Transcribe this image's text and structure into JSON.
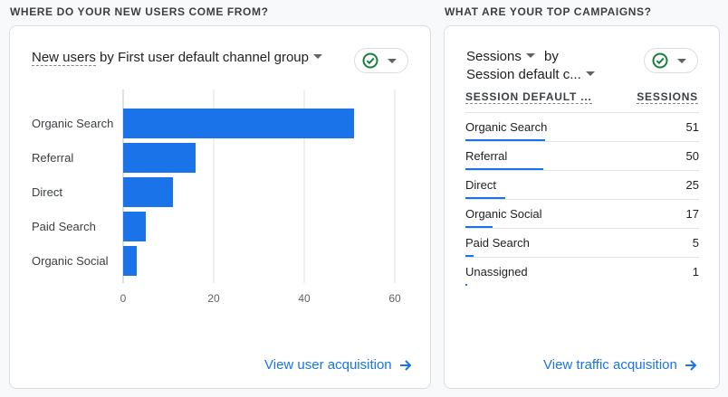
{
  "left": {
    "section_title": "WHERE DO YOUR NEW USERS COME FROM?",
    "chart_title_part1": "New users",
    "chart_title_part2": " by First user default channel group",
    "link": "View user acquisition",
    "chart_data": {
      "type": "bar",
      "orientation": "horizontal",
      "categories": [
        "Organic Search",
        "Referral",
        "Direct",
        "Paid Search",
        "Organic Social"
      ],
      "values": [
        51,
        16,
        11,
        5,
        3
      ],
      "xlim": [
        0,
        60
      ],
      "ticks": [
        0,
        20,
        40,
        60
      ],
      "color": "#1a73e8",
      "grid": true
    }
  },
  "right": {
    "section_title": "WHAT ARE YOUR TOP CAMPAIGNS?",
    "title_metric": "Sessions",
    "title_by": "by",
    "title_dimension": "Session default c...",
    "col1": "SESSION DEFAULT ...",
    "col2": "SESSIONS",
    "rows": [
      {
        "name": "Organic Search",
        "value": "51",
        "frac": 0.34
      },
      {
        "name": "Referral",
        "value": "50",
        "frac": 0.335
      },
      {
        "name": "Direct",
        "value": "25",
        "frac": 0.17
      },
      {
        "name": "Organic Social",
        "value": "17",
        "frac": 0.115
      },
      {
        "name": "Paid Search",
        "value": "5",
        "frac": 0.035
      },
      {
        "name": "Unassigned",
        "value": "1",
        "frac": 0.008
      }
    ],
    "link": "View traffic acquisition"
  },
  "colors": {
    "accent": "#1a73e8",
    "check": "#188038"
  },
  "icons": {
    "check": "check-circle-icon",
    "arrow": "arrow-right-icon"
  }
}
